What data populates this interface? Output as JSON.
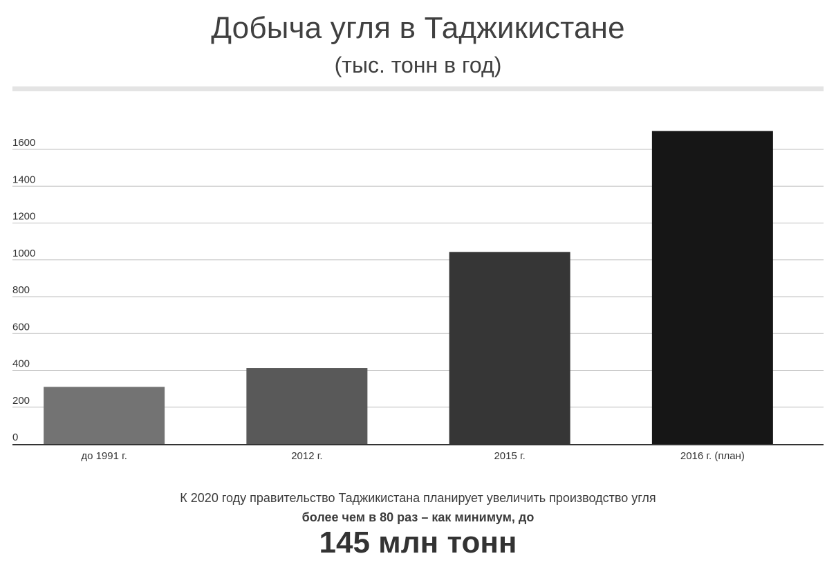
{
  "chart_data": {
    "type": "bar",
    "title": "Добыча угля в Таджикистане",
    "subtitle": "(тыс. тонн в год)",
    "categories": [
      "до 1991 г.",
      "2012 г.",
      "2015 г.",
      "2016 г. (план)"
    ],
    "values": [
      310,
      413,
      1043,
      1700
    ],
    "bar_colors": [
      "#737373",
      "#595959",
      "#363636",
      "#161616"
    ],
    "yticks": [
      0,
      200,
      400,
      600,
      800,
      1000,
      1200,
      1400,
      1600
    ],
    "ylim": [
      0,
      1600
    ],
    "grid": true,
    "legend": "none",
    "xlabel": "",
    "ylabel": ""
  },
  "footnote": {
    "line1": "К 2020 году правительство Таджикистана планирует увеличить производство угля",
    "line2": "более чем в 80 раз – как минимум, до",
    "highlight": "145 млн тонн"
  }
}
